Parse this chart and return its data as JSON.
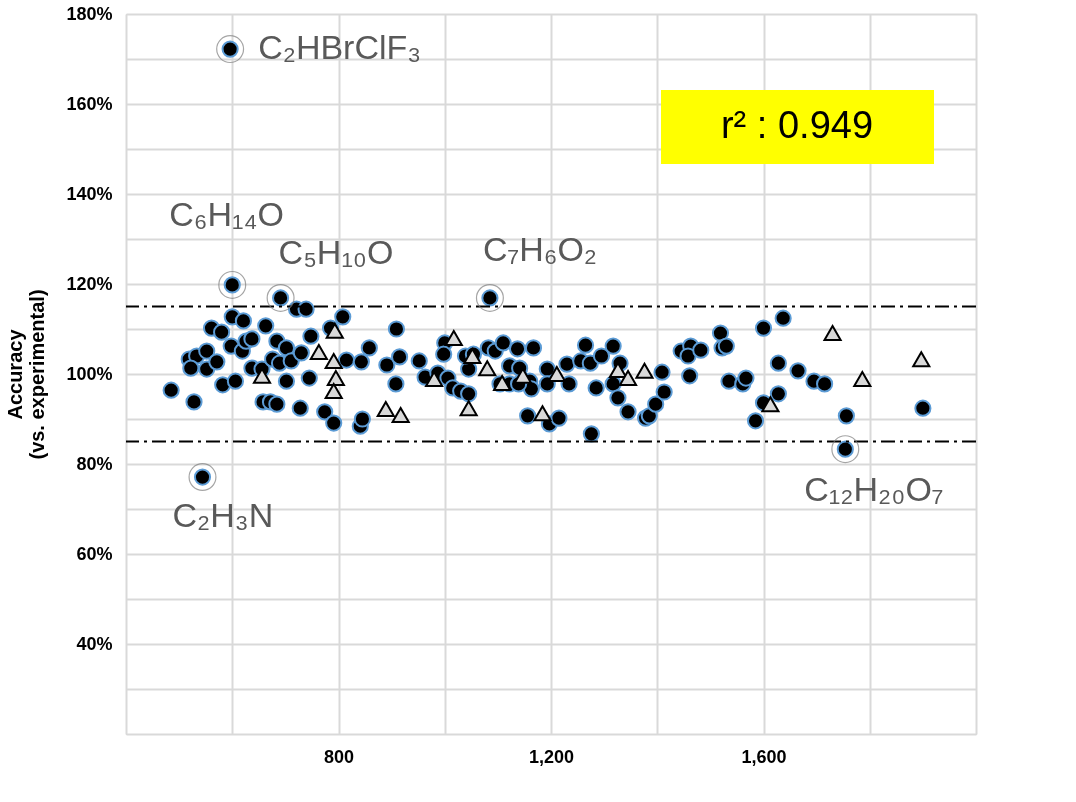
{
  "chart_data": {
    "type": "scatter",
    "ylabel": "Accuracy\n(vs. experimental)",
    "xlim": [
      400,
      2000
    ],
    "xticks": [
      {
        "value": 400,
        "label": null
      },
      {
        "value": 600,
        "label": null
      },
      {
        "value": 800,
        "label": "800"
      },
      {
        "value": 1000,
        "label": null
      },
      {
        "value": 1200,
        "label": "1,200"
      },
      {
        "value": 1400,
        "label": null
      },
      {
        "value": 1600,
        "label": "1,600"
      },
      {
        "value": 1800,
        "label": null
      },
      {
        "value": 2000,
        "label": null
      }
    ],
    "ylim": [
      20,
      180
    ],
    "yticks": [
      {
        "value": 20,
        "label": null
      },
      {
        "value": 30,
        "label": null
      },
      {
        "value": 40,
        "label": "40%"
      },
      {
        "value": 50,
        "label": null
      },
      {
        "value": 60,
        "label": "60%"
      },
      {
        "value": 70,
        "label": null
      },
      {
        "value": 80,
        "label": "80%"
      },
      {
        "value": 90,
        "label": null
      },
      {
        "value": 100,
        "label": "100%"
      },
      {
        "value": 110,
        "label": null
      },
      {
        "value": 120,
        "label": "120%"
      },
      {
        "value": 130,
        "label": null
      },
      {
        "value": 140,
        "label": "140%"
      },
      {
        "value": 150,
        "label": null
      },
      {
        "value": 160,
        "label": "160%"
      },
      {
        "value": 170,
        "label": null
      },
      {
        "value": 180,
        "label": "180%"
      }
    ],
    "grid": true,
    "series": [
      {
        "color": "#000000",
        "marker": "circle",
        "x": [
          485,
          528,
          519,
          533,
          552,
          522,
          552,
          571,
          561,
          580,
          600,
          621,
          598,
          619,
          626,
          637,
          582,
          606,
          663,
          637,
          656,
          658,
          672,
          684,
          684,
          702,
          676,
          689,
          711,
          702,
          721,
          739,
          748,
          730,
          745,
          728,
          774,
          791,
          808,
          785,
          815,
          843,
          858,
          841,
          845,
          891,
          909,
          915,
          908,
          952,
          963,
          1000,
          998,
          987,
          1006,
          1015,
          1030,
          1045,
          1045,
          1039,
          1054,
          1082,
          1095,
          1110,
          1122,
          1104,
          1122,
          1137,
          1141,
          1160,
          1163,
          1167,
          1139,
          1156,
          1193,
          1193,
          1197,
          1215,
          1230,
          1234,
          1256,
          1265,
          1274,
          1285,
          1295,
          1276,
          1317,
          1330,
          1317,
          1326,
          1345,
          1378,
          1385,
          1397,
          1413,
          1409,
          1445,
          1463,
          1458,
          1482,
          1461,
          1519,
          1522,
          1530,
          1535,
          1561,
          1567,
          1600,
          1637,
          1628,
          1600,
          1585,
          1628,
          1665,
          1695,
          1715,
          1756,
          1900,
          596,
          600,
          691,
          1085,
          544,
          1754
        ],
        "values": [
          96.4,
          93.8,
          103.3,
          104.0,
          105.1,
          101.3,
          101.1,
          102.7,
          110.2,
          109.3,
          112.7,
          111.8,
          106.2,
          105.1,
          107.3,
          107.8,
          97.6,
          98.4,
          110.7,
          101.3,
          101.1,
          93.8,
          93.8,
          93.3,
          107.3,
          105.8,
          103.3,
          102.4,
          102.9,
          98.4,
          114.4,
          114.4,
          108.4,
          104.7,
          99.1,
          92.4,
          91.6,
          89.1,
          112.7,
          110.2,
          103.1,
          102.7,
          105.8,
          88.4,
          90.0,
          102.0,
          110.0,
          103.8,
          97.8,
          102.9,
          99.3,
          106.9,
          104.4,
          100.2,
          99.1,
          96.9,
          96.2,
          95.6,
          101.1,
          104.0,
          104.4,
          105.8,
          105.1,
          106.9,
          101.8,
          97.8,
          97.8,
          105.6,
          101.3,
          98.4,
          96.7,
          105.8,
          97.8,
          90.7,
          101.1,
          97.8,
          88.9,
          90.2,
          102.2,
          97.8,
          102.9,
          106.4,
          102.4,
          96.9,
          104.0,
          86.7,
          106.2,
          102.4,
          97.8,
          94.7,
          91.6,
          90.2,
          90.7,
          93.3,
          96.0,
          100.4,
          105.1,
          106.2,
          104.0,
          105.3,
          99.6,
          109.1,
          105.8,
          106.2,
          98.4,
          97.8,
          99.1,
          110.2,
          112.4,
          102.4,
          93.6,
          89.6,
          95.6,
          100.7,
          98.4,
          97.8,
          90.7,
          92.4,
          172.2,
          119.8,
          116.9,
          116.9,
          77.1,
          83.3
        ]
      },
      {
        "color": "#d9d9d9",
        "marker": "triangle",
        "x": [
          656,
          763,
          793,
          791,
          795,
          791,
          889,
          917,
          980,
          1017,
          1052,
          1045,
          1080,
          1108,
          1147,
          1184,
          1211,
          1326,
          1345,
          1376,
          1730,
          1786,
          1897,
          1613
        ],
        "values": [
          99.6,
          104.9,
          109.6,
          102.9,
          99.1,
          96.2,
          92.2,
          90.9,
          98.9,
          108.0,
          104.0,
          92.4,
          101.3,
          98.0,
          99.6,
          91.3,
          100.0,
          100.9,
          99.1,
          100.7,
          109.1,
          98.9,
          103.3,
          93.3
        ]
      }
    ],
    "ref_lines": [
      {
        "axis": "y",
        "value": 115,
        "color": "#000000",
        "line_style": "dashed"
      },
      {
        "axis": "y",
        "value": 85,
        "color": "#000000",
        "line_style": "dashed"
      }
    ],
    "annotations": [
      {
        "text": "C₂HBrClF₃",
        "x": 596,
        "y": 172.2
      },
      {
        "text": "C₆H₁₄O",
        "x": 600,
        "y": 119.8
      },
      {
        "text": "C₅H₁₀O",
        "x": 691,
        "y": 116.9
      },
      {
        "text": "C₇H₆O₂",
        "x": 1085,
        "y": 116.9
      },
      {
        "text": "C₂H₃N",
        "x": 544,
        "y": 77.1
      },
      {
        "text": "C₁₂H₂₀O₇",
        "x": 1754,
        "y": 83.3
      },
      "r² : 0.949"
    ]
  }
}
